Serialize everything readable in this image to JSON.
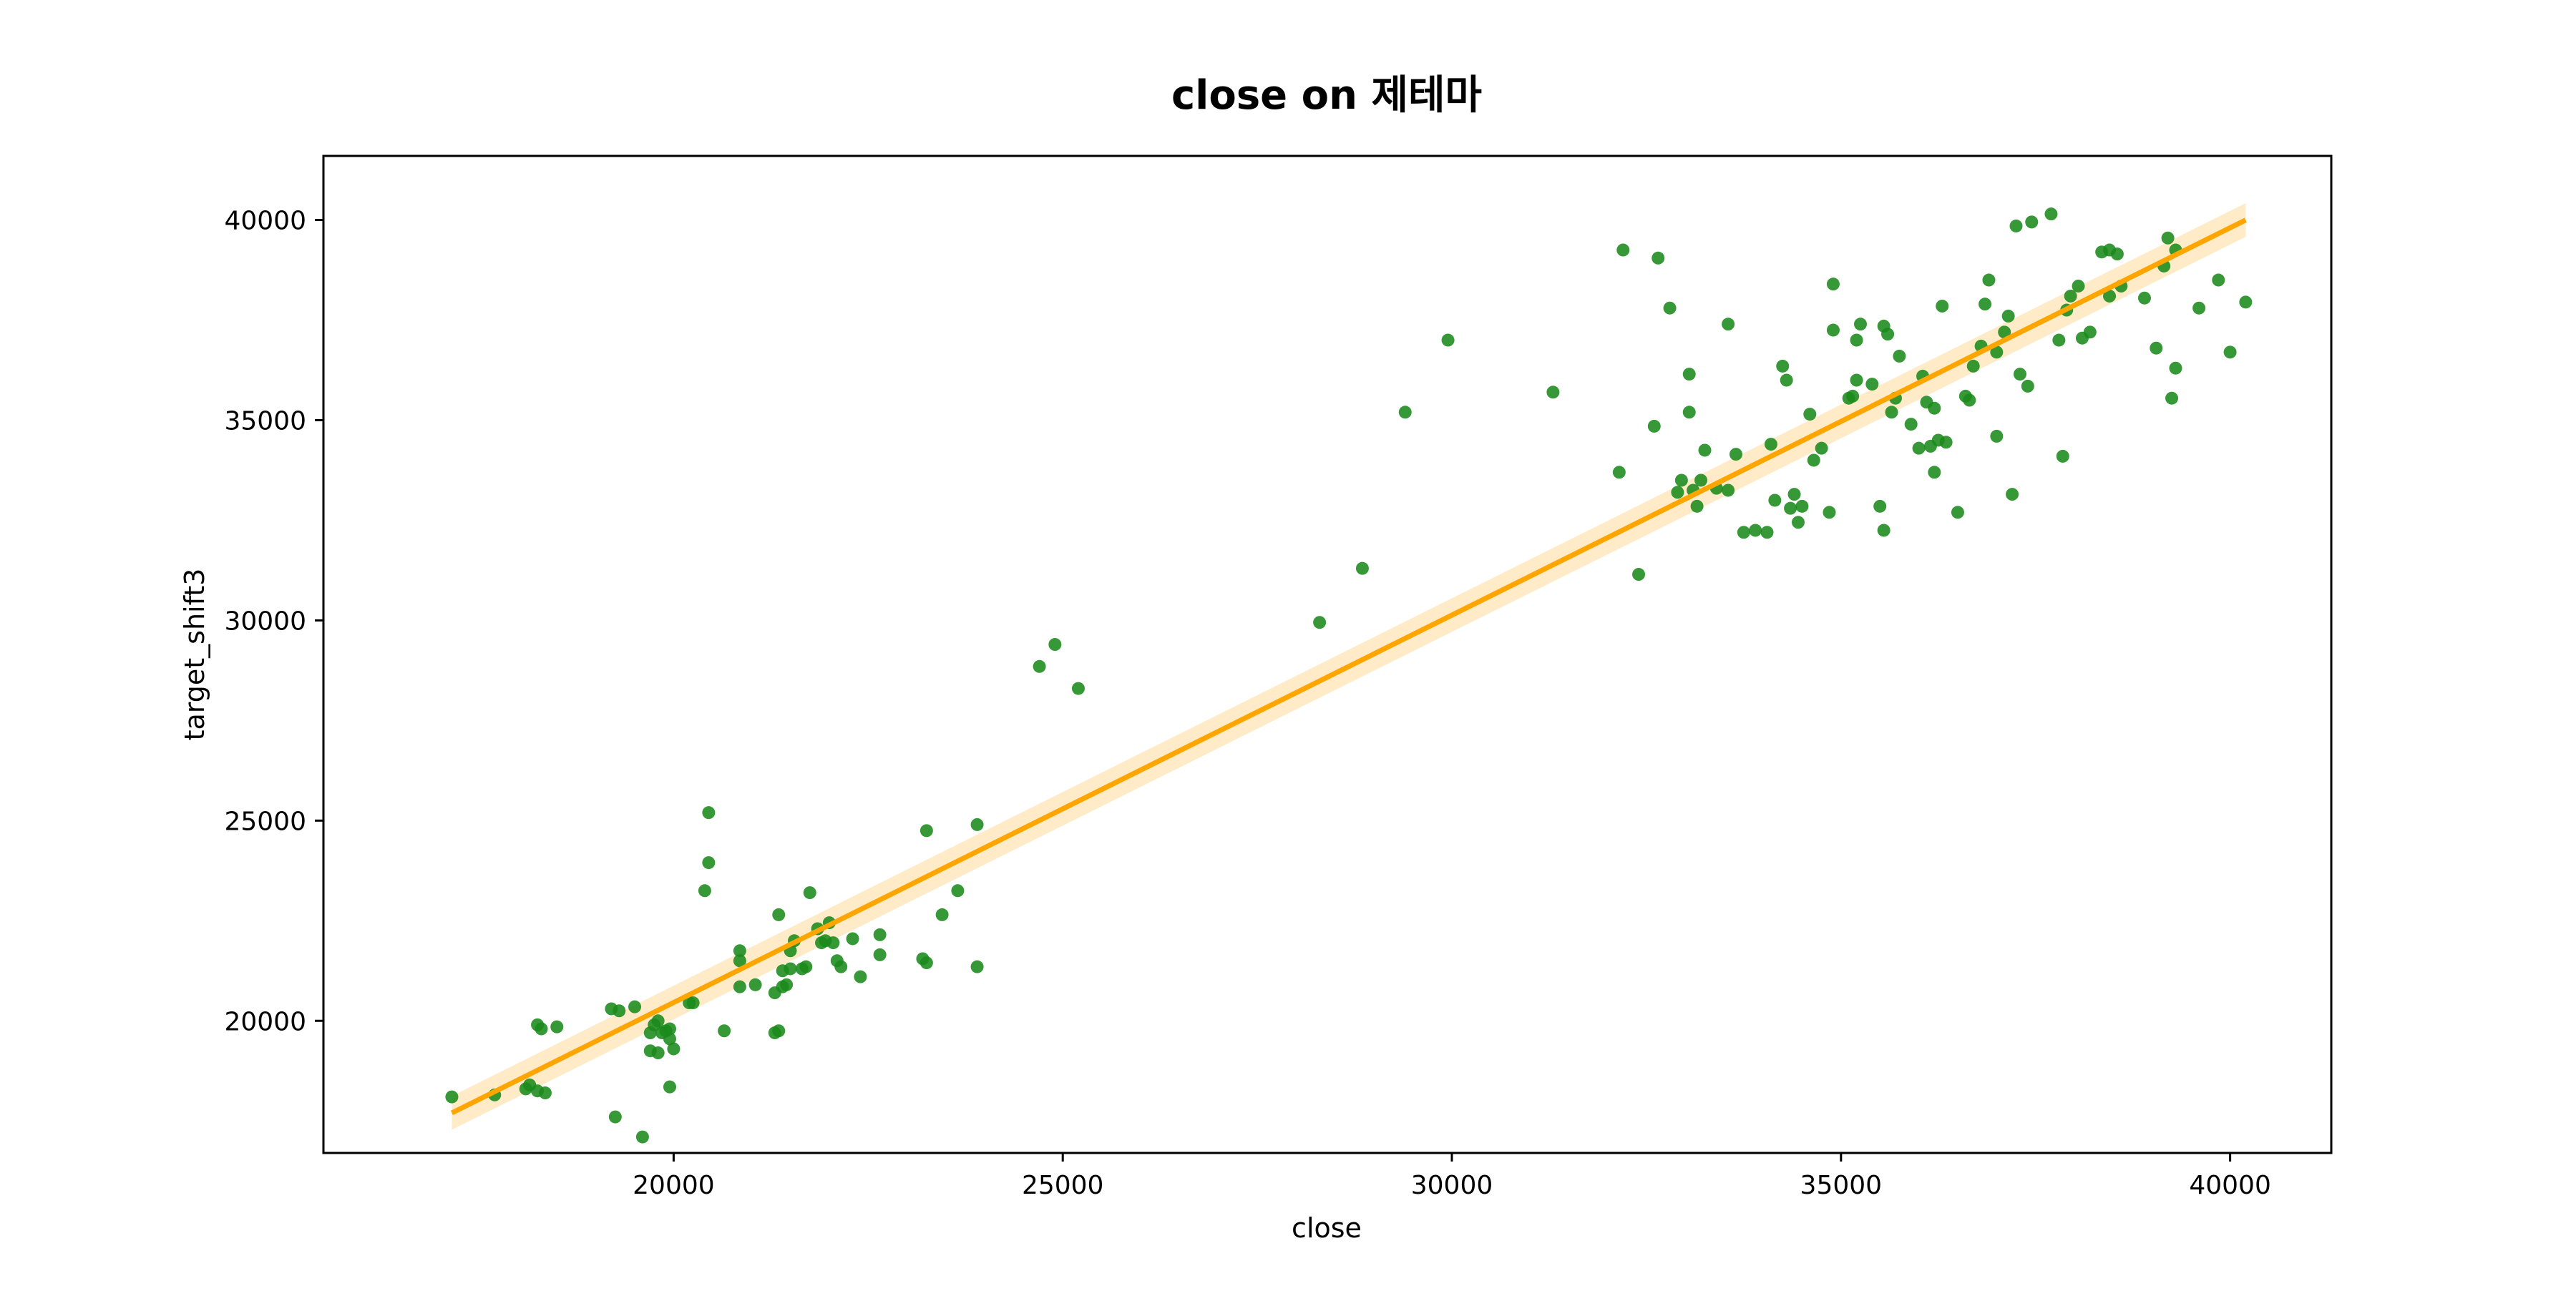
{
  "chart_data": {
    "type": "scatter",
    "title": "close on 제테마",
    "xlabel": "close",
    "ylabel": "target_shift3",
    "xlim": [
      15500,
      41300
    ],
    "ylim": [
      16700,
      41600
    ],
    "xticks": [
      20000,
      25000,
      30000,
      35000,
      40000
    ],
    "yticks": [
      20000,
      25000,
      30000,
      35000,
      40000
    ],
    "grid": false,
    "legend": "none",
    "colors": {
      "points": "#1a8a1a",
      "regression": "#ffa500",
      "band": "#ffe2b0",
      "frame": "#000000"
    },
    "regression_line": {
      "x": [
        17150,
        40200
      ],
      "y": [
        17700,
        40000
      ]
    },
    "points": [
      [
        17150,
        18100
      ],
      [
        17700,
        18150
      ],
      [
        18100,
        18300
      ],
      [
        18150,
        18400
      ],
      [
        18250,
        18250
      ],
      [
        18350,
        18200
      ],
      [
        18250,
        19900
      ],
      [
        18300,
        19800
      ],
      [
        18500,
        19850
      ],
      [
        19200,
        20300
      ],
      [
        19300,
        20250
      ],
      [
        19250,
        17600
      ],
      [
        19500,
        20350
      ],
      [
        19600,
        17100
      ],
      [
        19700,
        19700
      ],
      [
        19750,
        19900
      ],
      [
        19800,
        20000
      ],
      [
        19850,
        19700
      ],
      [
        19900,
        19750
      ],
      [
        19950,
        19800
      ],
      [
        19700,
        19250
      ],
      [
        19800,
        19200
      ],
      [
        19950,
        19550
      ],
      [
        20000,
        19300
      ],
      [
        19950,
        18350
      ],
      [
        20200,
        20450
      ],
      [
        20250,
        20450
      ],
      [
        20400,
        23250
      ],
      [
        20450,
        23950
      ],
      [
        20450,
        25200
      ],
      [
        20650,
        19750
      ],
      [
        20850,
        21750
      ],
      [
        20850,
        21500
      ],
      [
        20850,
        20850
      ],
      [
        21050,
        20900
      ],
      [
        21300,
        19700
      ],
      [
        21350,
        19750
      ],
      [
        21300,
        20700
      ],
      [
        21400,
        20850
      ],
      [
        21400,
        21250
      ],
      [
        21450,
        20900
      ],
      [
        21500,
        21300
      ],
      [
        21500,
        21750
      ],
      [
        21550,
        22000
      ],
      [
        21650,
        21300
      ],
      [
        21700,
        21350
      ],
      [
        21750,
        23200
      ],
      [
        21850,
        22300
      ],
      [
        21900,
        21950
      ],
      [
        21950,
        22000
      ],
      [
        22000,
        22450
      ],
      [
        22050,
        21950
      ],
      [
        22100,
        21500
      ],
      [
        22150,
        21350
      ],
      [
        22300,
        22050
      ],
      [
        22400,
        21100
      ],
      [
        22650,
        22150
      ],
      [
        22650,
        21650
      ],
      [
        21350,
        22650
      ],
      [
        23200,
        21550
      ],
      [
        23250,
        21450
      ],
      [
        23250,
        24750
      ],
      [
        23450,
        22650
      ],
      [
        23650,
        23250
      ],
      [
        23900,
        24900
      ],
      [
        23900,
        21350
      ],
      [
        24700,
        28850
      ],
      [
        24900,
        29400
      ],
      [
        25200,
        28300
      ],
      [
        28300,
        29950
      ],
      [
        28850,
        31300
      ],
      [
        29400,
        35200
      ],
      [
        29950,
        37000
      ],
      [
        31300,
        35700
      ],
      [
        32150,
        33700
      ],
      [
        32200,
        39250
      ],
      [
        32400,
        31150
      ],
      [
        32600,
        34850
      ],
      [
        32650,
        39050
      ],
      [
        32800,
        37800
      ],
      [
        32900,
        33200
      ],
      [
        32950,
        33500
      ],
      [
        33050,
        35200
      ],
      [
        33050,
        36150
      ],
      [
        33100,
        33250
      ],
      [
        33150,
        32850
      ],
      [
        33200,
        33500
      ],
      [
        33250,
        34250
      ],
      [
        33400,
        33300
      ],
      [
        33550,
        33250
      ],
      [
        33550,
        37400
      ],
      [
        33650,
        34150
      ],
      [
        33750,
        32200
      ],
      [
        33900,
        32250
      ],
      [
        34050,
        32200
      ],
      [
        34150,
        33000
      ],
      [
        34100,
        34400
      ],
      [
        34250,
        36350
      ],
      [
        34300,
        36000
      ],
      [
        34350,
        32800
      ],
      [
        34400,
        33150
      ],
      [
        34450,
        32450
      ],
      [
        34500,
        32850
      ],
      [
        34600,
        35150
      ],
      [
        34650,
        34000
      ],
      [
        34750,
        34300
      ],
      [
        34850,
        32700
      ],
      [
        34900,
        37250
      ],
      [
        34900,
        38400
      ],
      [
        35100,
        35550
      ],
      [
        35150,
        35600
      ],
      [
        35200,
        36000
      ],
      [
        35200,
        37000
      ],
      [
        35250,
        37400
      ],
      [
        35400,
        35900
      ],
      [
        35500,
        32850
      ],
      [
        35550,
        32250
      ],
      [
        35550,
        37350
      ],
      [
        35600,
        37150
      ],
      [
        35650,
        35200
      ],
      [
        35700,
        35550
      ],
      [
        35750,
        36600
      ],
      [
        35900,
        34900
      ],
      [
        36000,
        34300
      ],
      [
        36050,
        36100
      ],
      [
        36100,
        35450
      ],
      [
        36150,
        34350
      ],
      [
        36200,
        33700
      ],
      [
        36200,
        35300
      ],
      [
        36250,
        34500
      ],
      [
        36300,
        37850
      ],
      [
        36350,
        34450
      ],
      [
        36500,
        32700
      ],
      [
        36600,
        35600
      ],
      [
        36650,
        35500
      ],
      [
        36700,
        36350
      ],
      [
        36800,
        36850
      ],
      [
        36850,
        37900
      ],
      [
        36900,
        38500
      ],
      [
        37000,
        36700
      ],
      [
        37000,
        34600
      ],
      [
        37100,
        37200
      ],
      [
        37150,
        37600
      ],
      [
        37200,
        33150
      ],
      [
        37250,
        39850
      ],
      [
        37300,
        36150
      ],
      [
        37400,
        35850
      ],
      [
        37450,
        39950
      ],
      [
        37700,
        40150
      ],
      [
        37800,
        37000
      ],
      [
        37850,
        34100
      ],
      [
        37900,
        37750
      ],
      [
        37950,
        38100
      ],
      [
        38050,
        38350
      ],
      [
        38100,
        37050
      ],
      [
        38200,
        37200
      ],
      [
        38350,
        39200
      ],
      [
        38450,
        39250
      ],
      [
        38450,
        38100
      ],
      [
        38550,
        39150
      ],
      [
        38600,
        38350
      ],
      [
        38900,
        38050
      ],
      [
        39050,
        36800
      ],
      [
        39150,
        38850
      ],
      [
        39200,
        39550
      ],
      [
        39250,
        35550
      ],
      [
        39300,
        36300
      ],
      [
        39300,
        39250
      ],
      [
        39600,
        37800
      ],
      [
        39850,
        38500
      ],
      [
        40000,
        36700
      ],
      [
        40200,
        37950
      ]
    ]
  }
}
